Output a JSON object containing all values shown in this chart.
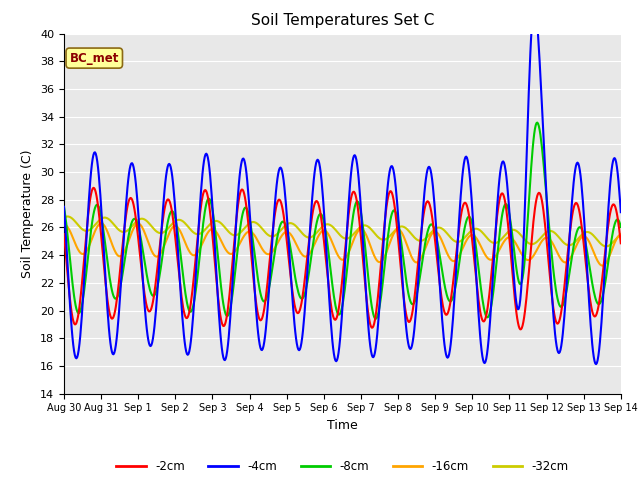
{
  "title": "Soil Temperatures Set C",
  "xlabel": "Time",
  "ylabel": "Soil Temperature (C)",
  "ylim": [
    14,
    40
  ],
  "yticks": [
    14,
    16,
    18,
    20,
    22,
    24,
    26,
    28,
    30,
    32,
    34,
    36,
    38,
    40
  ],
  "annotation": "BC_met",
  "annotation_color": "#8B0000",
  "annotation_bg": "#FFFF99",
  "line_colors": {
    "-2cm": "#FF0000",
    "-4cm": "#0000FF",
    "-8cm": "#00CC00",
    "-16cm": "#FFA500",
    "-32cm": "#CCCC00"
  },
  "background_color": "#E8E8E8",
  "grid_color": "#FFFFFF",
  "total_days": 15,
  "x_tick_labels": [
    "Aug 30",
    "Aug 31",
    "Sep 1",
    "Sep 2",
    "Sep 3",
    "Sep 4",
    "Sep 5",
    "Sep 6",
    "Sep 7",
    "Sep 8",
    "Sep 9",
    "Sep 10",
    "Sep 11",
    "Sep 12",
    "Sep 13",
    "Sep 14"
  ]
}
